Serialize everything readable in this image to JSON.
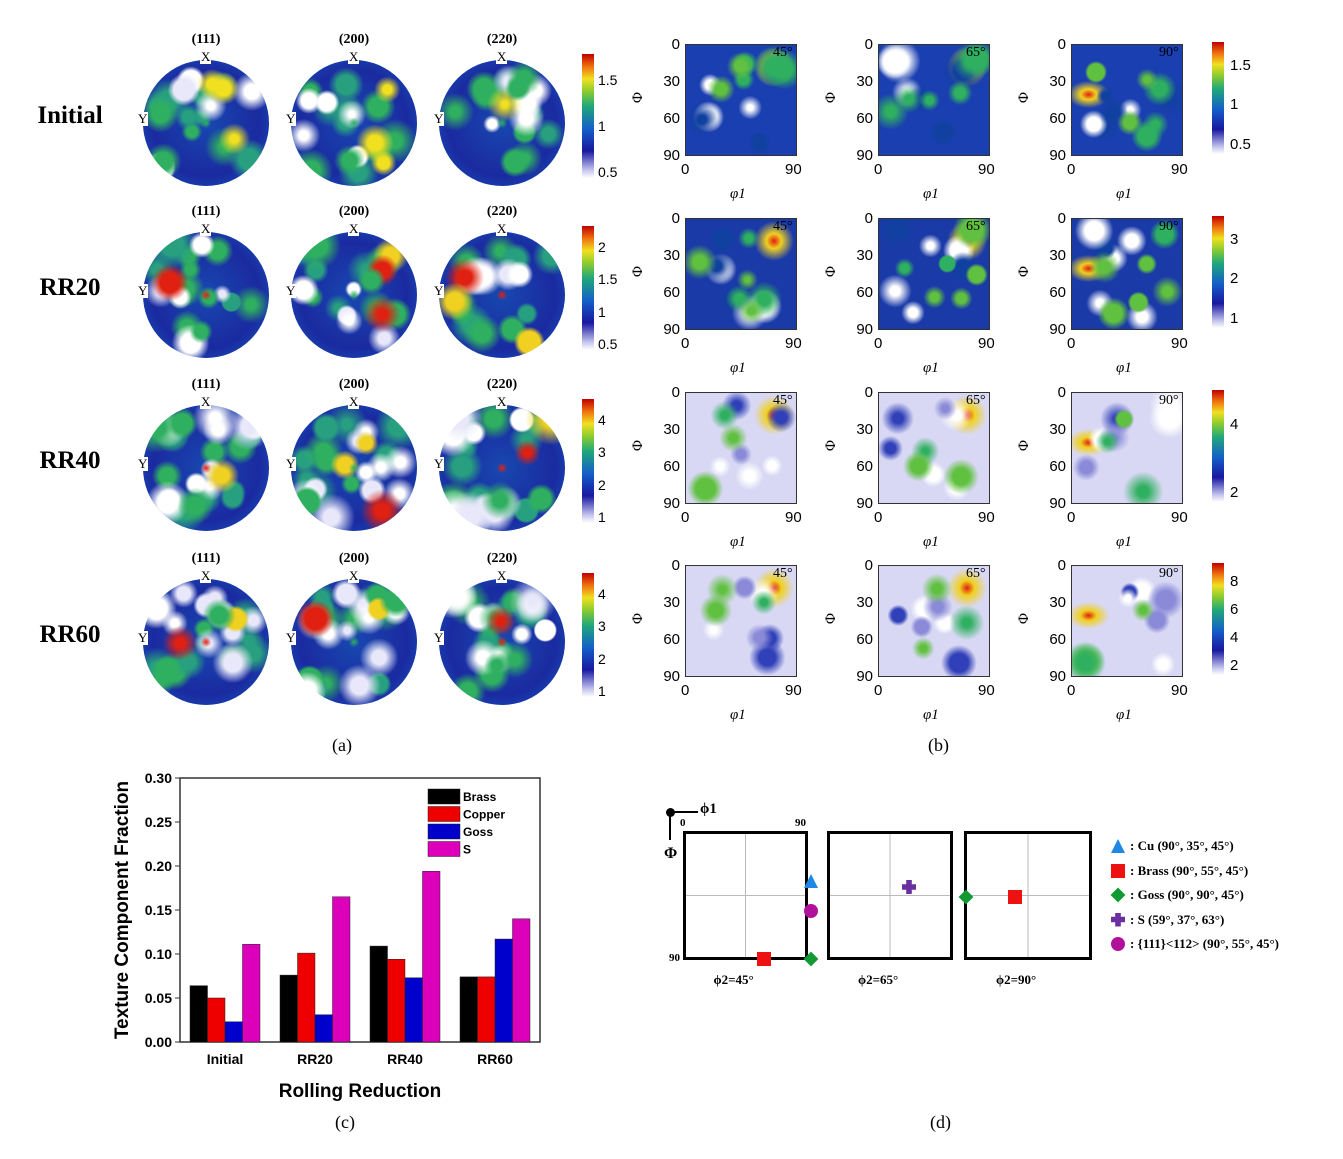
{
  "panel_a": {
    "rows": [
      "Initial",
      "RR20",
      "RR40",
      "RR60"
    ],
    "planes": [
      "(111)",
      "(200)",
      "(220)"
    ],
    "axis_x": "X",
    "axis_y": "Y",
    "colorbars": [
      [
        "0.5",
        "1",
        "1.5"
      ],
      [
        "0.5",
        "1",
        "1.5",
        "2"
      ],
      [
        "1",
        "2",
        "3",
        "4"
      ],
      [
        "1",
        "2",
        "3",
        "4"
      ]
    ],
    "caption": "(a)"
  },
  "panel_b": {
    "sections": [
      "45°",
      "65°",
      "90°"
    ],
    "y_label": "Φ",
    "x_label": "φ1",
    "y_ticks": [
      "0",
      "30",
      "60",
      "90"
    ],
    "x_ticks": [
      "0",
      "90"
    ],
    "colorbars": [
      [
        "0.5",
        "1",
        "1.5"
      ],
      [
        "1",
        "2",
        "3"
      ],
      [
        "2",
        "4"
      ],
      [
        "2",
        "4",
        "6",
        "8"
      ]
    ],
    "caption": "(b)"
  },
  "chart_data": {
    "type": "bar",
    "title": "",
    "xlabel": "Rolling Reduction",
    "ylabel": "Texture Component Fraction",
    "categories": [
      "Initial",
      "RR20",
      "RR40",
      "RR60"
    ],
    "ylim": [
      0,
      0.3
    ],
    "yticks": [
      "0.00",
      "0.05",
      "0.10",
      "0.15",
      "0.20",
      "0.25",
      "0.30"
    ],
    "legend_position": "top-right",
    "series": [
      {
        "name": "Brass",
        "color": "#000000",
        "values": [
          0.064,
          0.076,
          0.109,
          0.074
        ]
      },
      {
        "name": "Copper",
        "color": "#ee0000",
        "values": [
          0.05,
          0.101,
          0.094,
          0.074
        ]
      },
      {
        "name": "Goss",
        "color": "#0000cc",
        "values": [
          0.023,
          0.031,
          0.073,
          0.117
        ]
      },
      {
        "name": "S",
        "color": "#dd00bb",
        "values": [
          0.111,
          0.165,
          0.194,
          0.14
        ]
      }
    ],
    "caption": "(c)"
  },
  "panel_d": {
    "axis_phi1": "ϕ1",
    "axis_Phi": "Φ",
    "tick_0": "0",
    "tick_90_top": "90",
    "tick_90_left": "90",
    "sections": [
      "ϕ2=45°",
      "ϕ2=65°",
      "ϕ2=90°"
    ],
    "legend": [
      {
        "label": ": Cu (90°, 35°, 45°)",
        "marker": "triangle",
        "color": "#1e88e5"
      },
      {
        "label": ": Brass (90°, 55°, 45°)",
        "marker": "square",
        "color": "#ee1111"
      },
      {
        "label": ": Goss (90°, 90°, 45°)",
        "marker": "diamond",
        "color": "#119933"
      },
      {
        "label": ": S (59°, 37°, 63°)",
        "marker": "cross",
        "color": "#6a2fa0"
      },
      {
        "label": ": {111}<112> (90°, 55°, 45°)",
        "marker": "circle",
        "color": "#b0109a"
      }
    ],
    "caption": "(d)"
  }
}
